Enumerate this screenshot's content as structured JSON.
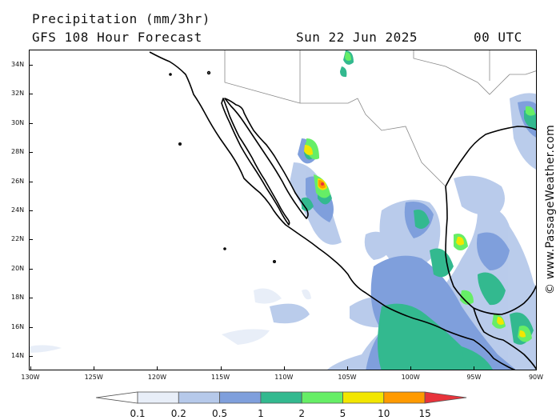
{
  "header": {
    "title": "Precipitation (mm/3hr)",
    "subtitle": "GFS 108 Hour Forecast",
    "date": "Sun 22 Jun 2025",
    "time": "00 UTC"
  },
  "map": {
    "lat_labels": [
      "34N",
      "32N",
      "30N",
      "28N",
      "26N",
      "24N",
      "22N",
      "20N",
      "18N",
      "16N",
      "14N"
    ],
    "lon_labels": [
      "130W",
      "125W",
      "120W",
      "115W",
      "110W",
      "105W",
      "100W",
      "95W",
      "90W"
    ],
    "land_icon": "coastline-outline",
    "precip_colors": [
      "#e8eef8",
      "#b6c9ea",
      "#7f9fdc",
      "#33b98f",
      "#66ee66",
      "#f2e600",
      "#ff9a00",
      "#e8333b"
    ]
  },
  "credit": "© www.PassageWeather.com",
  "legend": {
    "labels": [
      "0.1",
      "0.2",
      "0.5",
      "1",
      "2",
      "5",
      "10",
      "15"
    ],
    "colors": [
      "#ffffff",
      "#e8eef8",
      "#b6c9ea",
      "#7f9fdc",
      "#33b98f",
      "#66ee66",
      "#f2e600",
      "#ff9a00",
      "#e8333b"
    ]
  }
}
